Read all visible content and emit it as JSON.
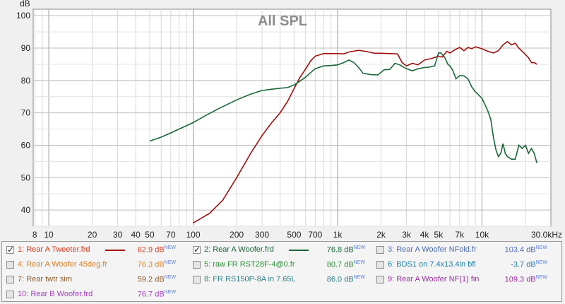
{
  "chart_data": {
    "type": "line",
    "title": "All SPL",
    "ylabel": "dB",
    "x_scale": "log",
    "xlim": [
      7.8,
      30000
    ],
    "ylim": [
      35,
      102
    ],
    "grid": true,
    "y_ticks": [
      40,
      50,
      60,
      70,
      80,
      90,
      100
    ],
    "x_ticks": [
      {
        "value": 8,
        "label": "8"
      },
      {
        "value": 10,
        "label": "10"
      },
      {
        "value": 20,
        "label": "20"
      },
      {
        "value": 30,
        "label": "30"
      },
      {
        "value": 40,
        "label": "40"
      },
      {
        "value": 50,
        "label": "50"
      },
      {
        "value": 70,
        "label": "70"
      },
      {
        "value": 100,
        "label": "100"
      },
      {
        "value": 200,
        "label": "200"
      },
      {
        "value": 300,
        "label": "300"
      },
      {
        "value": 500,
        "label": "500"
      },
      {
        "value": 700,
        "label": "700"
      },
      {
        "value": 1000,
        "label": "1k"
      },
      {
        "value": 2000,
        "label": "2k"
      },
      {
        "value": 3000,
        "label": "3k"
      },
      {
        "value": 4000,
        "label": "4k"
      },
      {
        "value": 5000,
        "label": "5k"
      },
      {
        "value": 7000,
        "label": "7k"
      },
      {
        "value": 10000,
        "label": "10k"
      },
      {
        "value": 30000,
        "label": "30.0kHz"
      }
    ],
    "series": [
      {
        "name": "1: Rear A Tweeter.frd",
        "color": "#a01010",
        "points": [
          [
            100,
            36
          ],
          [
            130,
            39
          ],
          [
            160,
            43
          ],
          [
            200,
            50
          ],
          [
            250,
            57.5
          ],
          [
            300,
            63
          ],
          [
            350,
            67
          ],
          [
            400,
            70
          ],
          [
            450,
            73.5
          ],
          [
            500,
            77.5
          ],
          [
            550,
            81
          ],
          [
            600,
            83.5
          ],
          [
            650,
            86
          ],
          [
            700,
            87.5
          ],
          [
            800,
            88.3
          ],
          [
            900,
            88.3
          ],
          [
            1000,
            88.3
          ],
          [
            1100,
            88.2
          ],
          [
            1200,
            88.8
          ],
          [
            1400,
            89.3
          ],
          [
            1600,
            88.9
          ],
          [
            1800,
            88.4
          ],
          [
            2000,
            88.4
          ],
          [
            2300,
            88.3
          ],
          [
            2600,
            88.2
          ],
          [
            2800,
            85.5
          ],
          [
            3000,
            84.5
          ],
          [
            3300,
            85.3
          ],
          [
            3600,
            84.8
          ],
          [
            4000,
            86.3
          ],
          [
            4500,
            86.8
          ],
          [
            5000,
            87.5
          ],
          [
            5300,
            87.2
          ],
          [
            5700,
            89
          ],
          [
            6000,
            88.5
          ],
          [
            6500,
            89.5
          ],
          [
            7000,
            90.2
          ],
          [
            7500,
            89.2
          ],
          [
            8000,
            90.2
          ],
          [
            8500,
            89.8
          ],
          [
            9000,
            90.4
          ],
          [
            10000,
            89.8
          ],
          [
            11000,
            89
          ],
          [
            12000,
            88.5
          ],
          [
            13000,
            89.2
          ],
          [
            14000,
            91
          ],
          [
            15000,
            92
          ],
          [
            16000,
            91
          ],
          [
            17000,
            91.5
          ],
          [
            18000,
            90
          ],
          [
            19000,
            89
          ],
          [
            20000,
            88
          ],
          [
            21000,
            87
          ],
          [
            22000,
            85.5
          ],
          [
            23000,
            85.5
          ],
          [
            24000,
            85
          ]
        ]
      },
      {
        "name": "2: Rear A Woofer.frd",
        "color": "#1a6638",
        "points": [
          [
            50,
            61.3
          ],
          [
            60,
            62.5
          ],
          [
            70,
            63.8
          ],
          [
            80,
            65
          ],
          [
            100,
            67
          ],
          [
            120,
            69
          ],
          [
            150,
            71.3
          ],
          [
            200,
            74
          ],
          [
            250,
            75.8
          ],
          [
            300,
            76.9
          ],
          [
            350,
            77.3
          ],
          [
            400,
            77.6
          ],
          [
            450,
            77.8
          ],
          [
            500,
            78.6
          ],
          [
            550,
            79.8
          ],
          [
            600,
            81
          ],
          [
            650,
            82.4
          ],
          [
            700,
            83.6
          ],
          [
            800,
            84.5
          ],
          [
            900,
            84.6
          ],
          [
            1000,
            84.8
          ],
          [
            1100,
            85.5
          ],
          [
            1200,
            86.3
          ],
          [
            1300,
            85.5
          ],
          [
            1400,
            84
          ],
          [
            1500,
            82.2
          ],
          [
            1700,
            81.8
          ],
          [
            1900,
            81.7
          ],
          [
            2100,
            83.3
          ],
          [
            2300,
            83.4
          ],
          [
            2500,
            85.3
          ],
          [
            2700,
            84.8
          ],
          [
            3000,
            83.6
          ],
          [
            3300,
            83
          ],
          [
            3600,
            83.6
          ],
          [
            4000,
            84
          ],
          [
            4300,
            84.1
          ],
          [
            4700,
            84.5
          ],
          [
            5000,
            88.5
          ],
          [
            5200,
            88.5
          ],
          [
            5500,
            87.2
          ],
          [
            5800,
            85
          ],
          [
            6000,
            84.5
          ],
          [
            6300,
            83
          ],
          [
            6600,
            80.5
          ],
          [
            7000,
            81.5
          ],
          [
            7500,
            81.4
          ],
          [
            8000,
            80.5
          ],
          [
            8500,
            78
          ],
          [
            9000,
            76.5
          ],
          [
            9500,
            75.5
          ],
          [
            10000,
            74.5
          ],
          [
            10500,
            72.5
          ],
          [
            11000,
            70.5
          ],
          [
            11500,
            68
          ],
          [
            12000,
            62.5
          ],
          [
            12500,
            58.5
          ],
          [
            13000,
            56.5
          ],
          [
            13500,
            57.5
          ],
          [
            14000,
            60.5
          ],
          [
            14500,
            57.5
          ],
          [
            15000,
            56.5
          ],
          [
            16000,
            55.7
          ],
          [
            17000,
            55.7
          ],
          [
            18000,
            60
          ],
          [
            19000,
            59
          ],
          [
            20000,
            60
          ],
          [
            21000,
            57.5
          ],
          [
            22000,
            59
          ],
          [
            23000,
            57.5
          ],
          [
            24000,
            54.5
          ]
        ]
      }
    ]
  },
  "legend": {
    "items": [
      {
        "label": "1: Rear A Tweeter.frd",
        "value": "62.9 dB",
        "new": "NEW",
        "color": "#d23b1e",
        "checked": true,
        "swatch": "#a01010"
      },
      {
        "label": "2: Rear A Woofer.frd",
        "value": "76.8 dB",
        "new": "NEW",
        "color": "#1a6638",
        "checked": true,
        "swatch": "#1a6638"
      },
      {
        "label": "3: Rear A Woofer NFold.fr",
        "value": "103.4 dB",
        "new": "NEW",
        "color": "#4b6ab0",
        "checked": false,
        "swatch": null
      },
      {
        "label": "4: Rear A Woofer 45deg.fr",
        "value": "76.3 dB",
        "new": "NEW",
        "color": "#d8822a",
        "checked": false,
        "swatch": null
      },
      {
        "label": "5: raw FR RST28F-4@0.fr",
        "value": "80.7 dB",
        "new": "NEW",
        "color": "#2f8f3a",
        "checked": false,
        "swatch": null
      },
      {
        "label": "6: BDS1 on 7.4x13.4in bfl",
        "value": "-3.7 dB",
        "new": "NEW",
        "color": "#1c7fa6",
        "checked": false,
        "swatch": null
      },
      {
        "label": "7: Rear twtr sim",
        "value": "59.2 dB",
        "new": "NEW",
        "color": "#8e5a28",
        "checked": false,
        "swatch": null
      },
      {
        "label": "8: FR RS150P-8A in 7.65L",
        "value": "86.0 dB",
        "new": "NEW",
        "color": "#2f7f86",
        "checked": false,
        "swatch": null
      },
      {
        "label": "9: Rear A Woofer NF(1) fin",
        "value": "109.3 dB",
        "new": "NEW",
        "color": "#9a2fa0",
        "checked": false,
        "swatch": null
      },
      {
        "label": "10: Rear B Woofer.frd",
        "value": "76.7 dB",
        "new": "NEW",
        "color": "#a43bc0",
        "checked": false,
        "swatch": null
      }
    ]
  }
}
